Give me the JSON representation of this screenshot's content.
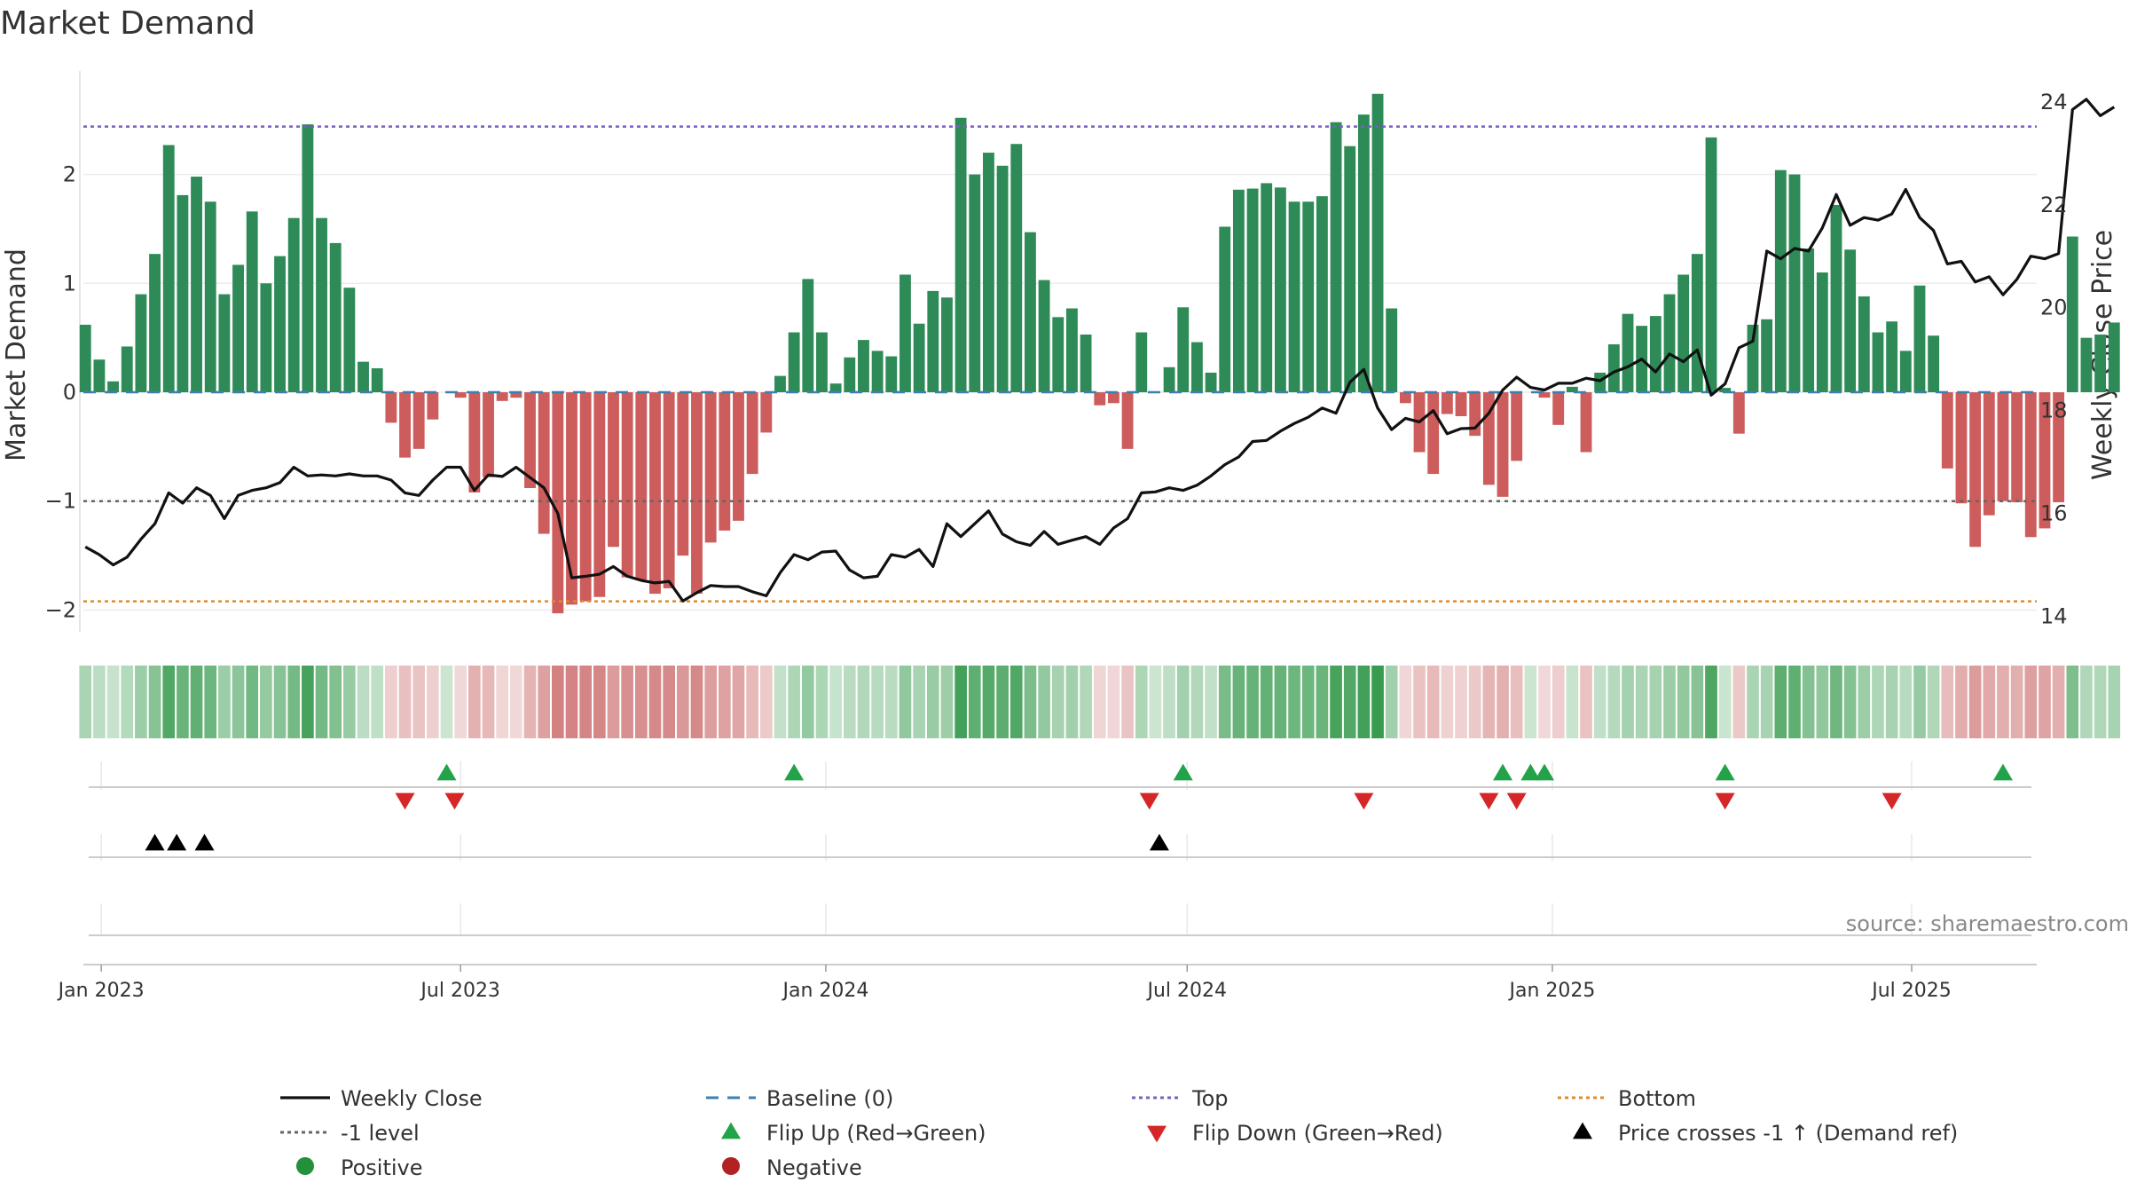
{
  "chart_data": {
    "type": "bar",
    "title": "Market Demand",
    "ylabel_left": "Market Demand",
    "ylabel_right": "Weekly Close Price",
    "ylim_left": [
      -2.2,
      2.95
    ],
    "ylim_right": [
      13.7,
      24.6
    ],
    "yticks_left": [
      -2,
      -1,
      0,
      1,
      2
    ],
    "ytick_labels_left": [
      "−2",
      "−1",
      "0",
      "1",
      "2"
    ],
    "yticks_right": [
      14,
      16,
      18,
      20,
      22,
      24
    ],
    "ytick_labels_right": [
      "14",
      "16",
      "18",
      "20",
      "22",
      "24"
    ],
    "x_start": "2022-12-23",
    "x_end": "2025-09-02",
    "x_tick_dates": [
      "2023-01-01",
      "2023-07-01",
      "2024-01-01",
      "2024-07-01",
      "2025-01-01",
      "2025-07-01"
    ],
    "x_tick_labels": [
      "Jan 2023",
      "Jul 2023",
      "Jan 2024",
      "Jul 2024",
      "Jan 2025",
      "Jul 2025"
    ],
    "levels": {
      "top": 2.44,
      "bottom": -1.92,
      "minus_one": -1,
      "baseline": 0
    },
    "weeks_start": "2022-12-24",
    "week_days": 7,
    "demand": [
      0.62,
      0.3,
      0.1,
      0.42,
      0.9,
      1.27,
      2.27,
      1.81,
      1.98,
      1.75,
      0.9,
      1.17,
      1.66,
      1.0,
      1.25,
      1.6,
      2.46,
      1.6,
      1.37,
      0.96,
      0.28,
      0.22,
      -0.28,
      -0.6,
      -0.52,
      -0.25,
      0.0,
      -0.05,
      -0.92,
      -0.78,
      -0.08,
      -0.05,
      -0.88,
      -1.3,
      -2.03,
      -1.95,
      -1.92,
      -1.88,
      -1.42,
      -1.7,
      -1.72,
      -1.85,
      -1.8,
      -1.5,
      -1.85,
      -1.38,
      -1.27,
      -1.18,
      -0.75,
      -0.37,
      0.15,
      0.55,
      1.04,
      0.55,
      0.08,
      0.32,
      0.48,
      0.38,
      0.33,
      1.08,
      0.63,
      0.93,
      0.87,
      2.52,
      2.0,
      2.2,
      2.08,
      2.28,
      1.47,
      1.03,
      0.69,
      0.77,
      0.53,
      -0.12,
      -0.1,
      -0.52,
      0.55,
      0.0,
      0.23,
      0.78,
      0.46,
      0.18,
      1.52,
      1.86,
      1.87,
      1.92,
      1.88,
      1.75,
      1.75,
      1.8,
      2.48,
      2.26,
      2.55,
      2.74,
      0.77,
      -0.1,
      -0.55,
      -0.75,
      -0.2,
      -0.22,
      -0.4,
      -0.85,
      -0.96,
      -0.63,
      0.0,
      -0.05,
      -0.3,
      0.05,
      -0.55,
      0.18,
      0.44,
      0.72,
      0.61,
      0.7,
      0.9,
      1.08,
      1.27,
      2.34,
      0.04,
      -0.38,
      0.62,
      0.67,
      2.04,
      2.0,
      1.32,
      1.1,
      1.72,
      1.31,
      0.88,
      0.55,
      0.65,
      0.38,
      0.98,
      0.52,
      -0.7,
      -1.02,
      -1.42,
      -1.13,
      -1.0,
      -1.01,
      -1.33,
      -1.25,
      -1.01,
      1.43,
      0.5,
      0.53,
      0.64
    ],
    "price": [
      15.35,
      15.2,
      15.0,
      15.15,
      15.5,
      15.8,
      16.4,
      16.2,
      16.5,
      16.35,
      15.9,
      16.35,
      16.45,
      16.5,
      16.6,
      16.9,
      16.73,
      16.75,
      16.73,
      16.77,
      16.73,
      16.73,
      16.65,
      16.4,
      16.35,
      16.65,
      16.9,
      16.9,
      16.45,
      16.75,
      16.72,
      16.9,
      16.7,
      16.5,
      16.0,
      14.75,
      14.78,
      14.82,
      14.97,
      14.78,
      14.7,
      14.65,
      14.68,
      14.3,
      14.46,
      14.6,
      14.58,
      14.58,
      14.48,
      14.4,
      14.85,
      15.2,
      15.1,
      15.25,
      15.27,
      14.9,
      14.75,
      14.78,
      15.2,
      15.15,
      15.3,
      14.97,
      15.8,
      15.55,
      15.8,
      16.05,
      15.6,
      15.45,
      15.38,
      15.65,
      15.4,
      15.48,
      15.55,
      15.4,
      15.72,
      15.9,
      16.4,
      16.42,
      16.5,
      16.45,
      16.55,
      16.73,
      16.95,
      17.1,
      17.4,
      17.42,
      17.6,
      17.75,
      17.87,
      18.05,
      17.95,
      18.55,
      18.8,
      18.05,
      17.63,
      17.85,
      17.78,
      18.0,
      17.55,
      17.65,
      17.66,
      17.95,
      18.4,
      18.65,
      18.45,
      18.4,
      18.53,
      18.53,
      18.63,
      18.58,
      18.75,
      18.85,
      19.0,
      18.75,
      19.1,
      18.95,
      19.18,
      18.3,
      18.52,
      19.22,
      19.35,
      21.1,
      20.95,
      21.15,
      21.1,
      21.55,
      22.2,
      21.6,
      21.75,
      21.7,
      21.82,
      22.3,
      21.75,
      21.5,
      20.85,
      20.9,
      20.5,
      20.6,
      20.25,
      20.55,
      21.0,
      20.95,
      21.05,
      23.85,
      24.05,
      23.73,
      23.9
    ],
    "flip_up_dates": [
      "2023-06-24",
      "2023-12-16",
      "2024-06-29",
      "2024-12-07",
      "2024-12-21",
      "2024-12-28",
      "2025-03-29",
      "2025-08-16"
    ],
    "flip_down_dates": [
      "2023-06-03",
      "2023-06-28",
      "2024-06-12",
      "2024-09-28",
      "2024-11-30",
      "2024-12-14",
      "2025-03-29",
      "2025-06-21"
    ],
    "price_cross_dates": [
      "2023-01-28",
      "2023-02-08",
      "2023-02-22",
      "2024-06-17"
    ],
    "source": "source: sharemaestro.com",
    "legend": [
      {
        "label": "Weekly Close",
        "marker": "line",
        "color": "#111111"
      },
      {
        "label": "Baseline (0)",
        "marker": "dash",
        "color": "#3c7fb1"
      },
      {
        "label": "Top",
        "marker": "dot",
        "color": "#7a5cc8"
      },
      {
        "label": "Bottom",
        "marker": "dot",
        "color": "#e08a2c"
      },
      {
        "label": "-1 level",
        "marker": "dot",
        "color": "#666666"
      },
      {
        "label": "Flip Up (Red→Green)",
        "marker": "tri-up",
        "color": "#22a34a"
      },
      {
        "label": "Flip Down (Green→Red)",
        "marker": "tri-down",
        "color": "#d62728"
      },
      {
        "label": "Price crosses -1 ↑ (Demand ref)",
        "marker": "tri-up",
        "color": "#000000"
      },
      {
        "label": "Positive",
        "marker": "circle",
        "color": "#22913a"
      },
      {
        "label": "Negative",
        "marker": "circle",
        "color": "#b22222"
      }
    ],
    "colors": {
      "positive_bar": "#2e8b57",
      "negative_bar": "#cd5c5c",
      "price_line": "#111111",
      "top_line": "#7a5cc8",
      "bottom_line": "#e08a2c",
      "minus_one_line": "#666666",
      "baseline": "#3c7fb1"
    }
  }
}
